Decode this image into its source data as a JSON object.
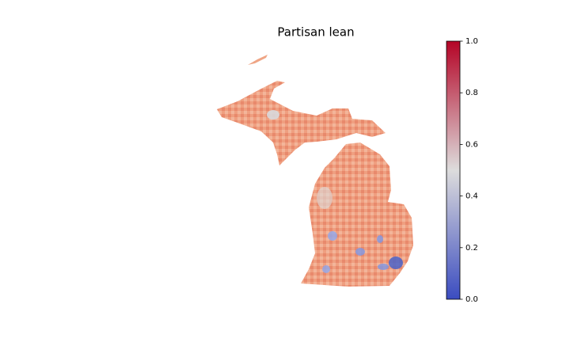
{
  "title": "Partisan lean",
  "colorbar": {
    "colormap": "coolwarm",
    "colors": [
      "#3b4cc0",
      "#dddcdc",
      "#b40426"
    ],
    "lim": [
      0,
      1
    ],
    "ticks": [
      {
        "value": 0,
        "label": "0.0"
      },
      {
        "value": 0.2,
        "label": "0.2"
      },
      {
        "value": 0.4,
        "label": "0.4"
      },
      {
        "value": 0.6,
        "label": "0.6"
      },
      {
        "value": 0.8,
        "label": "0.8"
      },
      {
        "value": 1,
        "label": "1.0"
      }
    ]
  }
}
